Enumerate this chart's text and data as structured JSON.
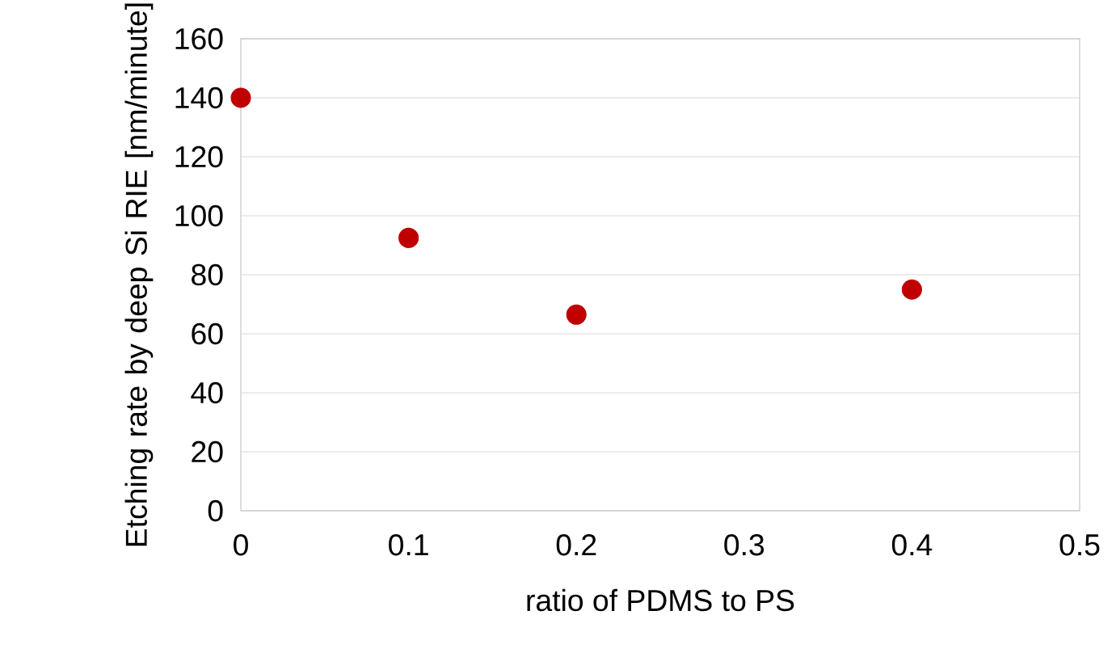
{
  "chart_data": {
    "type": "scatter",
    "xlabel": "ratio of PDMS to PS",
    "ylabel": "Etching rate by deep Si RIE [nm/minute]",
    "x": [
      0,
      0.1,
      0.2,
      0.4
    ],
    "values": [
      140,
      92.5,
      66.5,
      75
    ],
    "color": "#c00000",
    "marker": "circle",
    "xlim": [
      0,
      0.5
    ],
    "xticks": [
      0,
      0.1,
      0.2,
      0.3,
      0.4,
      0.5
    ],
    "ylim": [
      0,
      160
    ],
    "yticks": [
      0,
      20,
      40,
      60,
      80,
      100,
      120,
      140,
      160
    ],
    "grid": "y"
  }
}
